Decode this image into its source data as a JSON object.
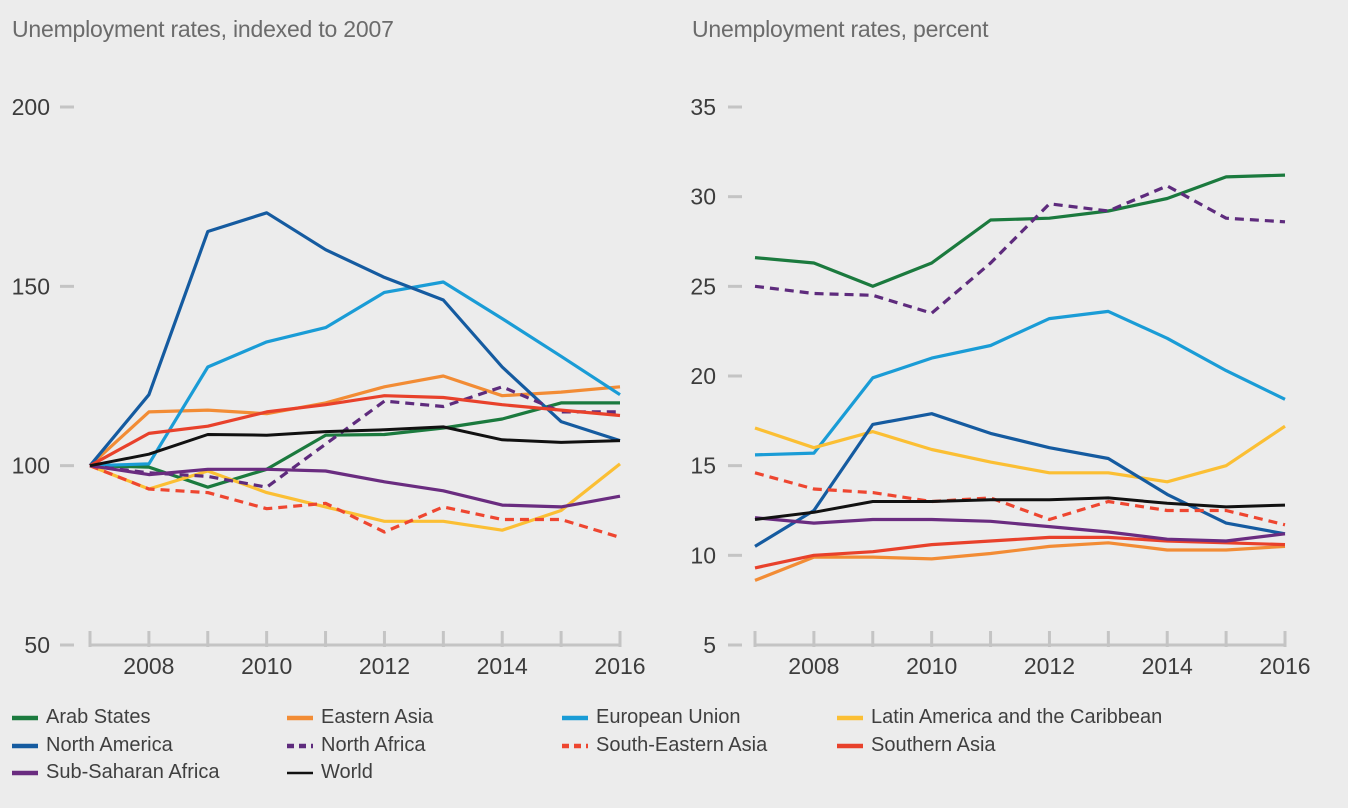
{
  "chart_data": [
    {
      "type": "line",
      "title": "Unemployment rates, indexed to 2007",
      "x": [
        2007,
        2008,
        2009,
        2010,
        2011,
        2012,
        2013,
        2014,
        2015,
        2016
      ],
      "x_tick_labels": [
        "2008",
        "2010",
        "2012",
        "2014",
        "2016"
      ],
      "y_ticks": [
        50,
        100,
        150,
        200
      ],
      "ylim": [
        50,
        200
      ],
      "grid": false,
      "series": [
        {
          "name": "Arab States",
          "values": [
            100,
            99.6,
            94,
            99,
            108.5,
            108.7,
            110.5,
            113,
            117.5,
            117.5
          ]
        },
        {
          "name": "Eastern Asia",
          "values": [
            100,
            115,
            115.5,
            114.5,
            117.5,
            122,
            125,
            119.5,
            120.5,
            122
          ]
        },
        {
          "name": "European Union",
          "values": [
            100,
            100.5,
            127.5,
            134.5,
            138.5,
            148.3,
            151.2,
            141,
            130.5,
            119.8
          ]
        },
        {
          "name": "Latin America and the Caribbean",
          "values": [
            100,
            93.5,
            98.5,
            92.5,
            88.5,
            84.5,
            84.5,
            82,
            87.5,
            100.5
          ]
        },
        {
          "name": "North America",
          "values": [
            100,
            119.8,
            165.3,
            170.5,
            160.2,
            152.5,
            146.2,
            127.5,
            112.3,
            107
          ]
        },
        {
          "name": "North Africa",
          "values": [
            100,
            98,
            97,
            94,
            106,
            118,
            116.5,
            122,
            115,
            115
          ]
        },
        {
          "name": "South-Eastern Asia",
          "values": [
            100,
            93.5,
            92.5,
            88,
            89.5,
            81.5,
            88.5,
            85,
            85,
            80
          ]
        },
        {
          "name": "Southern Asia",
          "values": [
            100,
            109,
            111,
            115,
            117,
            119.5,
            119,
            117,
            115.5,
            114
          ]
        },
        {
          "name": "Sub-Saharan Africa",
          "values": [
            100,
            97.5,
            99,
            99,
            98.5,
            95.5,
            93,
            89,
            88.5,
            91.5
          ]
        },
        {
          "name": "World",
          "values": [
            100,
            103.2,
            108.7,
            108.5,
            109.5,
            110,
            110.8,
            107.2,
            106.5,
            107
          ]
        }
      ]
    },
    {
      "type": "line",
      "title": "Unemployment rates, percent",
      "x": [
        2007,
        2008,
        2009,
        2010,
        2011,
        2012,
        2013,
        2014,
        2015,
        2016
      ],
      "x_tick_labels": [
        "2008",
        "2010",
        "2012",
        "2014",
        "2016"
      ],
      "y_ticks": [
        5,
        10,
        15,
        20,
        25,
        30,
        35
      ],
      "ylim": [
        5,
        35
      ],
      "grid": false,
      "series": [
        {
          "name": "Arab States",
          "values": [
            26.6,
            26.3,
            25,
            26.3,
            28.7,
            28.8,
            29.2,
            29.9,
            31.1,
            31.2
          ]
        },
        {
          "name": "Eastern Asia",
          "values": [
            8.6,
            9.9,
            9.9,
            9.8,
            10.1,
            10.5,
            10.7,
            10.3,
            10.3,
            10.5
          ]
        },
        {
          "name": "European Union",
          "values": [
            15.6,
            15.7,
            19.9,
            21,
            21.7,
            23.2,
            23.6,
            22.1,
            20.3,
            18.7
          ]
        },
        {
          "name": "Latin America and the Caribbean",
          "values": [
            17.1,
            16,
            16.9,
            15.9,
            15.2,
            14.6,
            14.6,
            14.1,
            15,
            17.2
          ]
        },
        {
          "name": "North America",
          "values": [
            10.5,
            12.5,
            17.3,
            17.9,
            16.8,
            16,
            15.4,
            13.4,
            11.8,
            11.2
          ]
        },
        {
          "name": "North Africa",
          "values": [
            25,
            24.6,
            24.5,
            23.5,
            26.3,
            29.6,
            29.2,
            30.6,
            28.8,
            28.6
          ]
        },
        {
          "name": "South-Eastern Asia",
          "values": [
            14.6,
            13.7,
            13.5,
            13,
            13.2,
            12,
            13,
            12.5,
            12.5,
            11.7
          ]
        },
        {
          "name": "Southern Asia",
          "values": [
            9.3,
            10,
            10.2,
            10.6,
            10.8,
            11,
            11,
            10.8,
            10.7,
            10.6
          ]
        },
        {
          "name": "Sub-Saharan Africa",
          "values": [
            12.1,
            11.8,
            12,
            12,
            11.9,
            11.6,
            11.3,
            10.9,
            10.8,
            11.2
          ]
        },
        {
          "name": "World",
          "values": [
            12,
            12.4,
            13,
            13,
            13.1,
            13.1,
            13.2,
            12.9,
            12.7,
            12.8
          ]
        }
      ]
    }
  ],
  "legend": {
    "items": [
      {
        "label": "Arab States",
        "color": "#1b7a3e",
        "dashed": false,
        "thin": false
      },
      {
        "label": "Eastern Asia",
        "color": "#f28c35",
        "dashed": false,
        "thin": false
      },
      {
        "label": "European Union",
        "color": "#1a9cd6",
        "dashed": false,
        "thin": false
      },
      {
        "label": "Latin America and the Caribbean",
        "color": "#fbbf34",
        "dashed": false,
        "thin": false
      },
      {
        "label": "North America",
        "color": "#155ba0",
        "dashed": false,
        "thin": false
      },
      {
        "label": "North Africa",
        "color": "#5e2b7d",
        "dashed": true,
        "thin": false
      },
      {
        "label": "South-Eastern Asia",
        "color": "#ee4630",
        "dashed": true,
        "thin": false
      },
      {
        "label": "Southern Asia",
        "color": "#e8412b",
        "dashed": false,
        "thin": false
      },
      {
        "label": "Sub-Saharan Africa",
        "color": "#6a2c80",
        "dashed": false,
        "thin": false
      },
      {
        "label": "World",
        "color": "#111111",
        "dashed": false,
        "thin": true
      }
    ]
  }
}
